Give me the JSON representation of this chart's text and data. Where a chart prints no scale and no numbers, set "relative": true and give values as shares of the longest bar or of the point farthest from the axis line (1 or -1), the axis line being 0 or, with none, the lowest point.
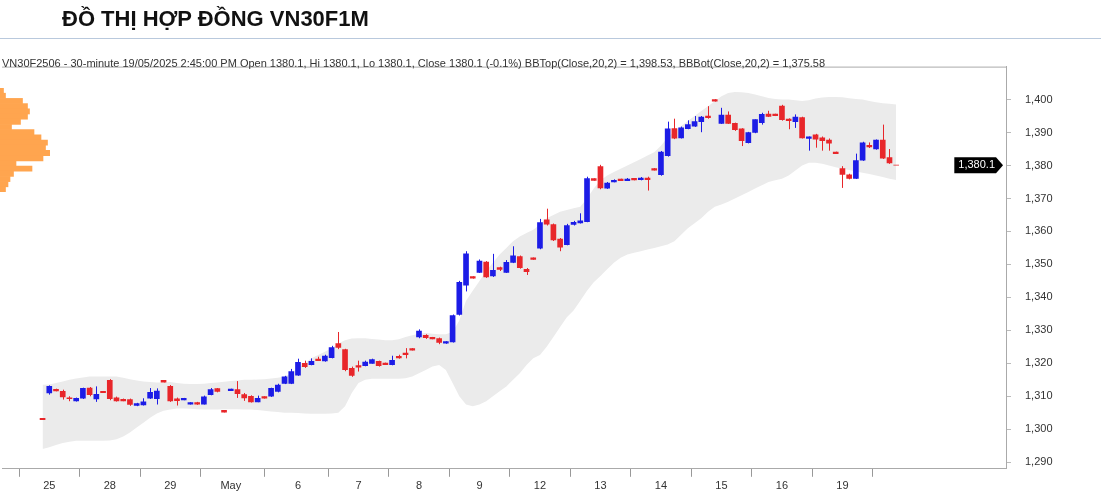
{
  "chart_data": [
    {
      "type": "candlestick",
      "title": "ĐỒ THỊ HỢP ĐỒNG VN30F1M",
      "subtitle": "VN30F2506 - 30-minute 19/05/2025 2:45:00 PM Open 1380.1, Hi 1380.1, Lo 1380.1, Close 1380.1 (-0.1%) BBTop(Close,20,2) = 1,398.53, BBBot(Close,20,2) = 1,375.58",
      "categories": [
        null,
        "25",
        null,
        null,
        null,
        null,
        null,
        null,
        null,
        null,
        "28",
        null,
        null,
        null,
        null,
        null,
        null,
        null,
        null,
        "29",
        null,
        null,
        null,
        null,
        null,
        null,
        null,
        null,
        "May",
        null,
        null,
        null,
        null,
        null,
        null,
        null,
        null,
        null,
        "6",
        null,
        null,
        null,
        null,
        null,
        null,
        null,
        null,
        "7",
        null,
        null,
        null,
        null,
        null,
        null,
        null,
        null,
        "8",
        null,
        null,
        null,
        null,
        null,
        null,
        null,
        null,
        "9",
        null,
        null,
        null,
        null,
        null,
        null,
        null,
        null,
        "12",
        null,
        null,
        null,
        null,
        null,
        null,
        null,
        null,
        "13",
        null,
        null,
        null,
        null,
        null,
        null,
        null,
        null,
        "14",
        null,
        null,
        null,
        null,
        null,
        null,
        null,
        null,
        "15",
        null,
        null,
        null,
        null,
        null,
        null,
        null,
        null,
        "16",
        null,
        null,
        null,
        null,
        null,
        null,
        null,
        null,
        "19",
        null,
        null,
        null,
        null,
        null,
        null,
        null,
        null
      ],
      "ohlc": [
        [
          1303.3,
          1303.4,
          1302.8,
          1302.9
        ],
        [
          1311,
          1313.3,
          1310.5,
          1313
        ],
        [
          1312.1,
          1312.3,
          1311.5,
          1311.6
        ],
        [
          1311.5,
          1312,
          1309,
          1309.8
        ],
        [
          1309.5,
          1310,
          1308.5,
          1309.3
        ],
        [
          1308.6,
          1309.6,
          1308.4,
          1309.4
        ],
        [
          1309.4,
          1312.6,
          1309.2,
          1312.4
        ],
        [
          1312.5,
          1312.8,
          1310,
          1310.5
        ],
        [
          1309.2,
          1313,
          1308.3,
          1310.6
        ],
        [
          1311.5,
          1311.6,
          1311.0,
          1311.1
        ],
        [
          1314.8,
          1315.2,
          1308.8,
          1309.3
        ],
        [
          1309.5,
          1309.9,
          1308.4,
          1308.6
        ],
        [
          1309.1,
          1309.3,
          1308.5,
          1308.6
        ],
        [
          1309,
          1309.3,
          1307.1,
          1307.5
        ],
        [
          1307.2,
          1308,
          1307,
          1307.8
        ],
        [
          1307.4,
          1309.4,
          1307.2,
          1308.3
        ],
        [
          1309.4,
          1312.5,
          1309.2,
          1311.2
        ],
        [
          1309.3,
          1312.4,
          1307.5,
          1311.6
        ],
        [
          1314.8,
          1314.9,
          1314.2,
          1314.3
        ],
        [
          1313,
          1313.4,
          1308.3,
          1308.6
        ],
        [
          1309.2,
          1309.6,
          1307.2,
          1308.7
        ],
        [
          1308.9,
          1309.5,
          1308.8,
          1309.4
        ],
        [
          1307.6,
          1308.2,
          1307.5,
          1308.1
        ],
        [
          1308.1,
          1308.3,
          1307.4,
          1307.6
        ],
        [
          1307.6,
          1310.2,
          1307.5,
          1309.8
        ],
        [
          1310.5,
          1312.5,
          1310.3,
          1312
        ],
        [
          1312.3,
          1312.5,
          1311.2,
          1311.5
        ],
        [
          1305.7,
          1305.8,
          1305.1,
          1305.2
        ],
        [
          1311.7,
          1312.3,
          1311.6,
          1312.2
        ],
        [
          1312,
          1314.6,
          1309.5,
          1310.8
        ],
        [
          1310.5,
          1311,
          1308.6,
          1309.5
        ],
        [
          1310,
          1310.3,
          1308.1,
          1308.3
        ],
        [
          1308.3,
          1310.2,
          1308.2,
          1309.4
        ],
        [
          1309.9,
          1310,
          1309.3,
          1309.4
        ],
        [
          1310,
          1312.6,
          1309.8,
          1312.4
        ],
        [
          1311.5,
          1313.8,
          1311.2,
          1313.4
        ],
        [
          1313.9,
          1316.2,
          1313.7,
          1315.9
        ],
        [
          1313.9,
          1318.3,
          1313.7,
          1317.5
        ],
        [
          1316.4,
          1321.4,
          1316.2,
          1320.3
        ],
        [
          1320,
          1320.8,
          1318.6,
          1319
        ],
        [
          1319.6,
          1321.5,
          1319.4,
          1320.6
        ],
        [
          1321.3,
          1322,
          1320.7,
          1320.8
        ],
        [
          1320.7,
          1322.6,
          1320.5,
          1322.2
        ],
        [
          1321.7,
          1325.3,
          1321.5,
          1324.8
        ],
        [
          1326,
          1329.5,
          1324.3,
          1324.8
        ],
        [
          1324.2,
          1324.4,
          1317.6,
          1318.1
        ],
        [
          1318.5,
          1319,
          1315.9,
          1316.3
        ],
        [
          1319.3,
          1320.8,
          1317.5,
          1318.8
        ],
        [
          1319.3,
          1320.8,
          1319.1,
          1320.4
        ],
        [
          1320,
          1321.4,
          1319.9,
          1321.1
        ],
        [
          1320.6,
          1320.8,
          1319,
          1319.3
        ],
        [
          1320.1,
          1320.2,
          1319.5,
          1319.6
        ],
        [
          1319.6,
          1322.3,
          1319.4,
          1320.9
        ],
        [
          1322.1,
          1322.6,
          1321.4,
          1321.6
        ],
        [
          1323.1,
          1324.6,
          1321.5,
          1322.6
        ],
        [
          1324.5,
          1324.6,
          1323.9,
          1324.0
        ],
        [
          1328,
          1330.3,
          1327.6,
          1329.8
        ],
        [
          1328.5,
          1328.8,
          1327.4,
          1327.8
        ],
        [
          1327.9,
          1328,
          1327.3,
          1327.4
        ],
        [
          1327.5,
          1327.8,
          1325.8,
          1326.3
        ],
        [
          1326.1,
          1326.7,
          1325.9,
          1326.6
        ],
        [
          1326.5,
          1334.8,
          1326.3,
          1334.5
        ],
        [
          1334.8,
          1345,
          1334.5,
          1344.6
        ],
        [
          1343.7,
          1354,
          1341.8,
          1353.2
        ],
        [
          1346.3,
          1346.4,
          1345.7,
          1345.8
        ],
        [
          1347.6,
          1351.5,
          1347.4,
          1351
        ],
        [
          1350.7,
          1351,
          1345.9,
          1346.2
        ],
        [
          1346.5,
          1353.2,
          1346.2,
          1348.2
        ],
        [
          1349,
          1349.3,
          1348,
          1348.5
        ],
        [
          1347.6,
          1351.3,
          1347.4,
          1350.6
        ],
        [
          1350.6,
          1355.5,
          1350.4,
          1352.6
        ],
        [
          1352.4,
          1352.7,
          1348.7,
          1349
        ],
        [
          1348.5,
          1348.9,
          1346.8,
          1347.8
        ],
        [
          1352,
          1352.1,
          1351.4,
          1351.5
        ],
        [
          1354.9,
          1363.8,
          1354.6,
          1362.7
        ],
        [
          1363.5,
          1366.9,
          1361.8,
          1362.2
        ],
        [
          1362.1,
          1362.4,
          1357.1,
          1357.4
        ],
        [
          1357.7,
          1358,
          1354,
          1355.2
        ],
        [
          1356,
          1362.3,
          1355.8,
          1361.8
        ],
        [
          1362.1,
          1363.2,
          1361.8,
          1362.8
        ],
        [
          1362.6,
          1365.5,
          1362.4,
          1363.2
        ],
        [
          1363,
          1376.6,
          1362.8,
          1376
        ],
        [
          1376,
          1376.1,
          1375.4,
          1375.5
        ],
        [
          1379.7,
          1380.2,
          1372.8,
          1373.2
        ],
        [
          1373.1,
          1375,
          1372.9,
          1374.7
        ],
        [
          1375,
          1375.8,
          1374.9,
          1375.5
        ],
        [
          1375.9,
          1376,
          1375.3,
          1375.4
        ],
        [
          1375.4,
          1376.2,
          1375.3,
          1375.9
        ],
        [
          1376.1,
          1376.2,
          1375.5,
          1375.6
        ],
        [
          1375.7,
          1376.5,
          1375.5,
          1376.2
        ],
        [
          1376.2,
          1376.6,
          1372.4,
          1375.7
        ],
        [
          1379.1,
          1379.2,
          1378.5,
          1378.6
        ],
        [
          1377.2,
          1384.4,
          1376.9,
          1384.1
        ],
        [
          1383,
          1393.3,
          1382.7,
          1391.1
        ],
        [
          1391.2,
          1394.2,
          1388,
          1388.3
        ],
        [
          1388.4,
          1391.8,
          1388.2,
          1391.4
        ],
        [
          1391.2,
          1393.7,
          1391,
          1392.4
        ],
        [
          1391.9,
          1395,
          1391.7,
          1393.3
        ],
        [
          1393.3,
          1395,
          1390.1,
          1394.7
        ],
        [
          1395,
          1398,
          1394.2,
          1394.5
        ],
        [
          1400,
          1400.1,
          1399.4,
          1399.5
        ],
        [
          1392.8,
          1397.5,
          1392.6,
          1395.3
        ],
        [
          1395.3,
          1396.4,
          1392.6,
          1392.8
        ],
        [
          1392.8,
          1393,
          1390.5,
          1390.9
        ],
        [
          1391.1,
          1391.3,
          1385.9,
          1387.5
        ],
        [
          1386.9,
          1390.2,
          1386.7,
          1390
        ],
        [
          1390,
          1394,
          1389.8,
          1393.9
        ],
        [
          1393,
          1396,
          1392.4,
          1395.5
        ],
        [
          1395.6,
          1396.6,
          1394.7,
          1394.9
        ],
        [
          1395.6,
          1395.7,
          1395,
          1395.1
        ],
        [
          1398,
          1398.4,
          1393.6,
          1393.9
        ],
        [
          1394.1,
          1394.3,
          1391,
          1393.6
        ],
        [
          1393.3,
          1395.5,
          1391.4,
          1394.7
        ],
        [
          1394.5,
          1394.8,
          1388.2,
          1388.4
        ],
        [
          1388.2,
          1388.8,
          1384.5,
          1388.7
        ],
        [
          1389.3,
          1389.6,
          1385.4,
          1388
        ],
        [
          1388.4,
          1388.8,
          1384.5,
          1387.5
        ],
        [
          1387.7,
          1388.2,
          1384.5,
          1386.8
        ],
        [
          1384.1,
          1384.2,
          1383.5,
          1383.6
        ],
        [
          1379.1,
          1379.8,
          1373.2,
          1377.3
        ],
        [
          1377.2,
          1377.5,
          1375.8,
          1376.1
        ],
        [
          1376.1,
          1383.6,
          1375.9,
          1381.5
        ],
        [
          1381.6,
          1387.2,
          1381.4,
          1386.9
        ],
        [
          1386.1,
          1387,
          1385.3,
          1385.6
        ],
        [
          1385,
          1387.9,
          1384.8,
          1387.7
        ],
        [
          1387.7,
          1392.4,
          1382,
          1382.2
        ],
        [
          1382.4,
          1385,
          1380.5,
          1380.8
        ],
        [
          1380.1,
          1380.1,
          1380.1,
          1380.1
        ]
      ],
      "colors": [
        "#e8262a",
        "#1c1ce6",
        "#e8262a",
        "#e8262a",
        "#e8262a",
        "#1c1ce6",
        "#1c1ce6",
        "#e8262a",
        "#1c1ce6",
        "#e8262a",
        "#e8262a",
        "#e8262a",
        "#e8262a",
        "#e8262a",
        "#1c1ce6",
        "#1c1ce6",
        "#1c1ce6",
        "#1c1ce6",
        "#e8262a",
        "#e8262a",
        "#e8262a",
        "#1c1ce6",
        "#1c1ce6",
        "#e8262a",
        "#1c1ce6",
        "#1c1ce6",
        "#e8262a",
        "#e8262a",
        "#1c1ce6",
        "#e8262a",
        "#e8262a",
        "#e8262a",
        "#1c1ce6",
        "#e8262a",
        "#1c1ce6",
        "#1c1ce6",
        "#1c1ce6",
        "#1c1ce6",
        "#1c1ce6",
        "#e8262a",
        "#1c1ce6",
        "#e8262a",
        "#1c1ce6",
        "#1c1ce6",
        "#e8262a",
        "#e8262a",
        "#e8262a",
        "#e8262a",
        "#1c1ce6",
        "#1c1ce6",
        "#e8262a",
        "#e8262a",
        "#1c1ce6",
        "#e8262a",
        "#e8262a",
        "#e8262a",
        "#1c1ce6",
        "#e8262a",
        "#e8262a",
        "#e8262a",
        "#1c1ce6",
        "#1c1ce6",
        "#1c1ce6",
        "#1c1ce6",
        "#e8262a",
        "#1c1ce6",
        "#e8262a",
        "#1c1ce6",
        "#e8262a",
        "#1c1ce6",
        "#1c1ce6",
        "#e8262a",
        "#e8262a",
        "#e8262a",
        "#1c1ce6",
        "#e8262a",
        "#e8262a",
        "#e8262a",
        "#1c1ce6",
        "#1c1ce6",
        "#1c1ce6",
        "#1c1ce6",
        "#e8262a",
        "#e8262a",
        "#1c1ce6",
        "#1c1ce6",
        "#e8262a",
        "#1c1ce6",
        "#e8262a",
        "#1c1ce6",
        "#e8262a",
        "#e8262a",
        "#1c1ce6",
        "#1c1ce6",
        "#e8262a",
        "#1c1ce6",
        "#1c1ce6",
        "#1c1ce6",
        "#1c1ce6",
        "#e8262a",
        "#e8262a",
        "#1c1ce6",
        "#e8262a",
        "#e8262a",
        "#e8262a",
        "#1c1ce6",
        "#1c1ce6",
        "#1c1ce6",
        "#e8262a",
        "#e8262a",
        "#e8262a",
        "#e8262a",
        "#1c1ce6",
        "#e8262a",
        "#1c1ce6",
        "#e8262a",
        "#e8262a",
        "#e8262a",
        "#e8262a",
        "#e8262a",
        "#e8262a",
        "#1c1ce6",
        "#1c1ce6",
        "#e8262a",
        "#1c1ce6",
        "#e8262a",
        "#e8262a",
        "#e8262a"
      ],
      "series": [
        {
          "type": "line",
          "color": "#ebebeb",
          "values": [
            null,
            null,
            null,
            null,
            null,
            null,
            null,
            null,
            null,
            null,
            null,
            null,
            null,
            null,
            null,
            null,
            null,
            null,
            null,
            null,
            null,
            null,
            null,
            null,
            null,
            null,
            null,
            null,
            null,
            null,
            null,
            null,
            null,
            null,
            null,
            null,
            null,
            null,
            null,
            null,
            null,
            null,
            null,
            null,
            null,
            null,
            null,
            null,
            null,
            null,
            null,
            null,
            null,
            null,
            null,
            null,
            null,
            null,
            null,
            null,
            null,
            null,
            null,
            null,
            null,
            null,
            null,
            null,
            null,
            null,
            null,
            null,
            null,
            null,
            null,
            null,
            null,
            null,
            null,
            null,
            null,
            null,
            null,
            null,
            null,
            null,
            null,
            null,
            null,
            null,
            null,
            null,
            null,
            null,
            null,
            null,
            null,
            null,
            null,
            null,
            null,
            null,
            null,
            null,
            null,
            null,
            null,
            null,
            null,
            null,
            null,
            null,
            null,
            null,
            null,
            null,
            null,
            null,
            null,
            null,
            null,
            null,
            null,
            null,
            null,
            null,
            null,
            null
          ],
          "upper": [
            1313.5,
            1313.6,
            1314,
            1314.5,
            1315,
            1315.4,
            1315.7,
            1316,
            1316,
            1316,
            1316,
            1316,
            1315.6,
            1315.2,
            1314.8,
            1314.5,
            1314.3,
            1314.2,
            1314.2,
            1314.3,
            1314,
            1313.8,
            1313.7,
            1313.7,
            1313.8,
            1314,
            1314.2,
            1314.4,
            1314.6,
            1314.8,
            1315,
            1315,
            1315.1,
            1315.2,
            1315.4,
            1315.6,
            1316,
            1317,
            1318.5,
            1320,
            1321.5,
            1322.5,
            1323.5,
            1324.6,
            1326,
            1327,
            1327.5,
            1327.6,
            1327.6,
            1327.4,
            1327.2,
            1327,
            1327,
            1327.3,
            1328,
            1328.5,
            1329,
            1329.2,
            1329,
            1328.8,
            1328.8,
            1329.5,
            1333,
            1339,
            1342,
            1345,
            1348,
            1350.5,
            1353,
            1355,
            1357,
            1358.5,
            1359.5,
            1360.5,
            1362,
            1364,
            1365,
            1366,
            1366.5,
            1367,
            1367.5,
            1370,
            1373,
            1375.5,
            1377,
            1378,
            1379,
            1380,
            1381,
            1382,
            1383,
            1384,
            1386,
            1388.5,
            1390.5,
            1392,
            1393.5,
            1395,
            1396.5,
            1398,
            1399.5,
            1401,
            1402,
            1402.3,
            1402.2,
            1402,
            1401.5,
            1401,
            1400.5,
            1400.2,
            1400,
            1400,
            1399.8,
            1399.6,
            1399.8,
            1400.3,
            1400.6,
            1400.8,
            1400.8,
            1400.7,
            1400.4,
            1400.2,
            1400,
            1399.6,
            1399.2,
            1398.9,
            1398.7,
            1398.5
          ],
          "lower": [
            1294,
            1294.5,
            1295.2,
            1295.8,
            1296.2,
            1296.5,
            1296.5,
            1296.5,
            1296.5,
            1296.5,
            1296.6,
            1297,
            1297.8,
            1299,
            1300.5,
            1302,
            1303.5,
            1304.8,
            1305.6,
            1306,
            1306.3,
            1306.3,
            1306.2,
            1306.1,
            1306,
            1306,
            1306,
            1306.1,
            1306.1,
            1306.1,
            1306,
            1306,
            1305.8,
            1305.6,
            1305.4,
            1305.2,
            1305,
            1305,
            1304.9,
            1304.8,
            1304.7,
            1304.7,
            1304.7,
            1304.8,
            1305,
            1307,
            1311,
            1314,
            1315,
            1315.3,
            1315.3,
            1315.3,
            1315.3,
            1315.3,
            1315.5,
            1316,
            1317,
            1318,
            1319,
            1319.5,
            1318,
            1314,
            1310,
            1307.5,
            1307,
            1307.5,
            1308.5,
            1310,
            1311.5,
            1313,
            1315,
            1317,
            1319.5,
            1321.5,
            1322.5,
            1325,
            1328,
            1331,
            1334,
            1336,
            1339,
            1342,
            1344.6,
            1346.5,
            1348.5,
            1350.5,
            1352,
            1353,
            1353.5,
            1354,
            1354.5,
            1355,
            1355.5,
            1356,
            1357,
            1359,
            1361,
            1362.5,
            1364,
            1366,
            1367.5,
            1368.2,
            1369,
            1370,
            1371,
            1372,
            1373,
            1374,
            1375,
            1375.5,
            1376,
            1377,
            1378.5,
            1380,
            1380.8,
            1380.8,
            1380.5,
            1380,
            1379.5,
            1379,
            1378.6,
            1378.2,
            1377.8,
            1377.4,
            1377,
            1376.5,
            1376,
            1375.6
          ]
        }
      ],
      "ylim": [
        1288,
        1410
      ],
      "yticks": [
        {
          "value": 1290,
          "label": "1,290"
        },
        {
          "value": 1300,
          "label": "1,300"
        },
        {
          "value": 1310,
          "label": "1,310"
        },
        {
          "value": 1320,
          "label": "1,320"
        },
        {
          "value": 1330,
          "label": "1,330"
        },
        {
          "value": 1340,
          "label": "1,340"
        },
        {
          "value": 1350,
          "label": "1,350"
        },
        {
          "value": 1360,
          "label": "1,360"
        },
        {
          "value": 1370,
          "label": "1,370"
        },
        {
          "value": 1380,
          "label": "1,380"
        },
        {
          "value": 1390,
          "label": "1,390"
        },
        {
          "value": 1400,
          "label": "1,400"
        }
      ],
      "annotations": [
        "1,380.1"
      ]
    },
    {
      "type": "bar",
      "orientation": "horizontal",
      "relative": true,
      "tick_labels": false,
      "categories": [
        null,
        null,
        null,
        null,
        null,
        null,
        null,
        null,
        null,
        null,
        null,
        null,
        null,
        null,
        null,
        null,
        null,
        null,
        null,
        null
      ],
      "values": [
        0.07,
        0.11,
        0.45,
        0.55,
        0.59,
        0.55,
        0.41,
        0.23,
        0.68,
        0.82,
        0.95,
        0.91,
        1,
        0.86,
        0.32,
        0.64,
        0.27,
        0.2,
        0.16,
        0.11
      ],
      "color": "#ffa54f"
    }
  ]
}
